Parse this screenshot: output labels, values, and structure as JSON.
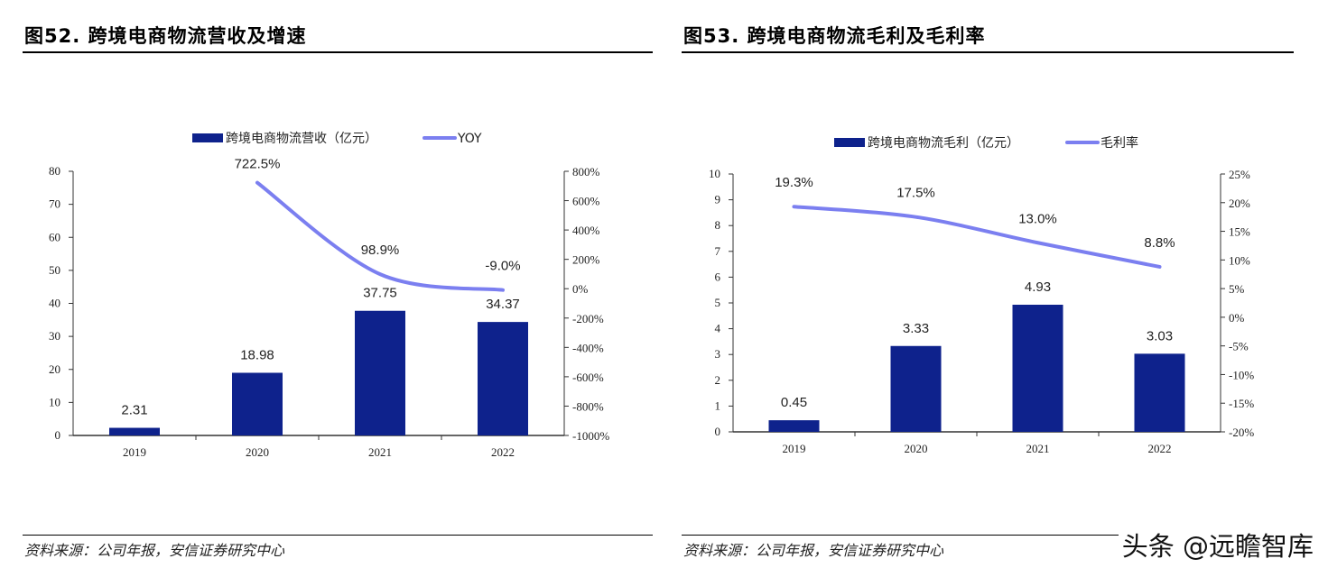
{
  "fig1": {
    "title": "图52. 跨境电商物流营收及增速",
    "source": "资料来源：公司年报，安信证券研究中心"
  },
  "fig2": {
    "title": "图53. 跨境电商物流毛利及毛利率",
    "source": "资料来源：公司年报，安信证券研究中心"
  },
  "watermark": "头条 @远瞻智库",
  "colors": {
    "bar": "#0e228c",
    "line": "#7b7ff0"
  },
  "chart_data": [
    {
      "type": "bar+line",
      "categories": [
        "2019",
        "2020",
        "2021",
        "2022"
      ],
      "series": [
        {
          "name": "跨境电商物流营收（亿元）",
          "type": "bar",
          "axis": "left",
          "values": [
            2.31,
            18.98,
            37.75,
            34.37
          ],
          "labels": [
            "2.31",
            "18.98",
            "37.75",
            "34.37"
          ]
        },
        {
          "name": "YOY",
          "type": "line",
          "axis": "right",
          "values": [
            null,
            722.5,
            98.9,
            -9.0
          ],
          "labels": [
            "",
            "722.5%",
            "98.9%",
            "-9.0%"
          ]
        }
      ],
      "ylim": [
        0,
        80
      ],
      "yticks": [
        "0",
        "10",
        "20",
        "30",
        "40",
        "50",
        "60",
        "70",
        "80"
      ],
      "y2lim": [
        -1000,
        800
      ],
      "y2ticks": [
        "-1000%",
        "-800%",
        "-600%",
        "-400%",
        "-200%",
        "0%",
        "200%",
        "400%",
        "600%",
        "800%"
      ],
      "legend": "top",
      "grid": false
    },
    {
      "type": "bar+line",
      "categories": [
        "2019",
        "2020",
        "2021",
        "2022"
      ],
      "series": [
        {
          "name": "跨境电商物流毛利（亿元）",
          "type": "bar",
          "axis": "left",
          "values": [
            0.45,
            3.33,
            4.93,
            3.03
          ],
          "labels": [
            "0.45",
            "3.33",
            "4.93",
            "3.03"
          ]
        },
        {
          "name": "毛利率",
          "type": "line",
          "axis": "right",
          "values": [
            19.3,
            17.5,
            13.0,
            8.8
          ],
          "labels": [
            "19.3%",
            "17.5%",
            "13.0%",
            "8.8%"
          ]
        }
      ],
      "ylim": [
        0,
        10
      ],
      "yticks": [
        "0",
        "1",
        "2",
        "3",
        "4",
        "5",
        "6",
        "7",
        "8",
        "9",
        "10"
      ],
      "y2lim": [
        -20,
        25
      ],
      "y2ticks": [
        "-20%",
        "-15%",
        "-10%",
        "-5%",
        "0%",
        "5%",
        "10%",
        "15%",
        "20%",
        "25%"
      ],
      "legend": "top",
      "grid": false
    }
  ]
}
